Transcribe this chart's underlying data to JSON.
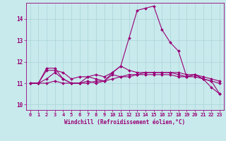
{
  "xlabel": "Windchill (Refroidissement éolien,°C)",
  "bg_color": "#c8eaec",
  "grid_color": "#aad4d8",
  "line_color": "#990077",
  "xlim": [
    -0.5,
    23.5
  ],
  "ylim": [
    9.75,
    14.75
  ],
  "yticks": [
    10,
    11,
    12,
    13,
    14
  ],
  "xticks": [
    0,
    1,
    2,
    3,
    4,
    5,
    6,
    7,
    8,
    9,
    10,
    11,
    12,
    13,
    14,
    15,
    16,
    17,
    18,
    19,
    20,
    21,
    22,
    23
  ],
  "series": [
    [
      11.0,
      11.0,
      11.7,
      11.7,
      11.2,
      11.0,
      11.0,
      11.3,
      11.2,
      11.1,
      11.5,
      11.8,
      13.1,
      14.4,
      14.5,
      14.6,
      13.5,
      12.9,
      12.5,
      11.3,
      11.4,
      11.2,
      10.8,
      10.5
    ],
    [
      11.0,
      11.0,
      11.6,
      11.6,
      11.5,
      11.2,
      11.3,
      11.3,
      11.4,
      11.3,
      11.5,
      11.8,
      11.6,
      11.5,
      11.5,
      11.5,
      11.5,
      11.5,
      11.5,
      11.4,
      11.4,
      11.3,
      11.2,
      11.1
    ],
    [
      11.0,
      11.0,
      11.2,
      11.5,
      11.2,
      11.0,
      11.0,
      11.1,
      11.0,
      11.1,
      11.4,
      11.3,
      11.4,
      11.4,
      11.5,
      11.5,
      11.5,
      11.5,
      11.4,
      11.3,
      11.4,
      11.2,
      11.1,
      11.0
    ],
    [
      11.0,
      11.0,
      11.0,
      11.1,
      11.0,
      11.0,
      11.0,
      11.0,
      11.1,
      11.1,
      11.2,
      11.3,
      11.3,
      11.4,
      11.4,
      11.4,
      11.4,
      11.4,
      11.3,
      11.3,
      11.3,
      11.2,
      11.1,
      10.5
    ]
  ]
}
